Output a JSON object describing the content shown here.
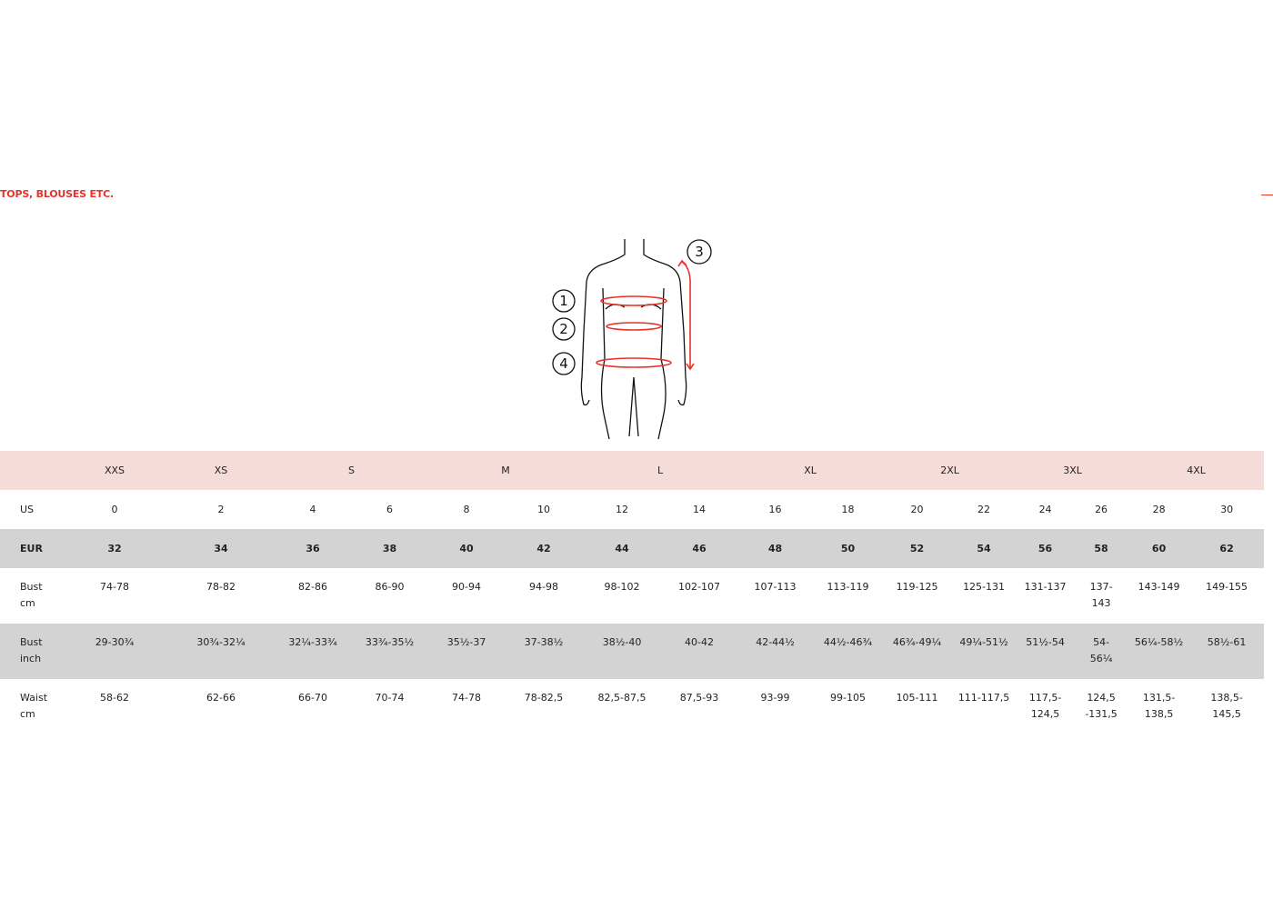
{
  "section": {
    "title": "TOPS, BLOUSES ETC."
  },
  "figure": {
    "markers": [
      "1",
      "2",
      "3",
      "4"
    ],
    "accent_color": "#e5332a"
  },
  "table": {
    "sizes": [
      {
        "label": "XXS",
        "span": 1
      },
      {
        "label": "XS",
        "span": 1
      },
      {
        "label": "S",
        "span": 2
      },
      {
        "label": "M",
        "span": 2
      },
      {
        "label": "L",
        "span": 2
      },
      {
        "label": "XL",
        "span": 2
      },
      {
        "label": "2XL",
        "span": 2
      },
      {
        "label": "3XL",
        "span": 2
      },
      {
        "label": "4XL",
        "span": 2
      }
    ],
    "rows": [
      {
        "label": [
          "US"
        ],
        "bold": false,
        "values": [
          "0",
          "2",
          "4",
          "6",
          "8",
          "10",
          "12",
          "14",
          "16",
          "18",
          "20",
          "22",
          "24",
          "26",
          "28",
          "30"
        ]
      },
      {
        "label": [
          "EUR"
        ],
        "bold": true,
        "values": [
          "32",
          "34",
          "36",
          "38",
          "40",
          "42",
          "44",
          "46",
          "48",
          "50",
          "52",
          "54",
          "56",
          "58",
          "60",
          "62"
        ]
      },
      {
        "label": [
          "Bust",
          "cm"
        ],
        "bold": false,
        "values": [
          "74-78",
          "78-82",
          "82-86",
          "86-90",
          "90-94",
          "94-98",
          "98-102",
          "102-107",
          "107-113",
          "113-119",
          "119-125",
          "125-131",
          "131-137",
          "137-\n143",
          "143-149",
          "149-155"
        ]
      },
      {
        "label": [
          "Bust",
          "inch"
        ],
        "bold": false,
        "values": [
          "29-30¾",
          "30¾-32¼",
          "32¼-33¾",
          "33¾-35½",
          "35½-37",
          "37-38½",
          "38½-40",
          "40-42",
          "42-44½",
          "44½-46¾",
          "46¾-49¼",
          "49¼-51½",
          "51½-54",
          "54-\n56¼",
          "56¼-58½",
          "58½-61"
        ]
      },
      {
        "label": [
          "Waist",
          "cm"
        ],
        "bold": false,
        "values": [
          "58-62",
          "62-66",
          "66-70",
          "70-74",
          "74-78",
          "78-82,5",
          "82,5-87,5",
          "87,5-93",
          "93-99",
          "99-105",
          "105-111",
          "111-117,5",
          "117,5-\n124,5",
          "124,5\n-131,5",
          "131,5-\n138,5",
          "138,5-\n145,5"
        ]
      }
    ]
  }
}
